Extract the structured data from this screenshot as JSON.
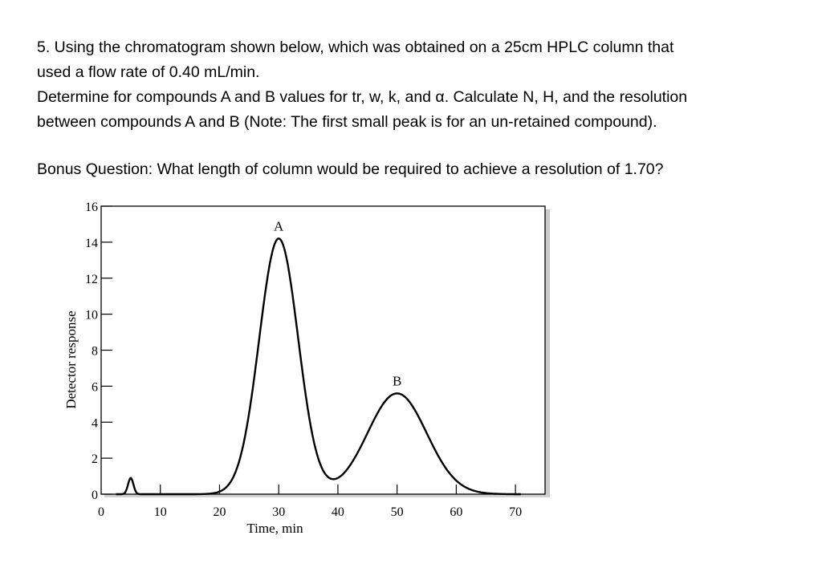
{
  "question": {
    "line1": "5. Using the chromatogram shown below, which was obtained on a 25cm HPLC column that",
    "line2": "used a flow rate of 0.40 mL/min.",
    "line3": "Determine for compounds A and B values for tr, w, k, and α. Calculate N, H, and the resolution",
    "line4": "between compounds A and B (Note: The first small peak is for an un-retained compound)."
  },
  "bonus": "Bonus Question: What length of column would be required to achieve a resolution of 1.70?",
  "chart_data": {
    "type": "line",
    "xlabel": "Time, min",
    "ylabel": "Detector response",
    "xlim": [
      0,
      75
    ],
    "ylim": [
      0,
      16
    ],
    "x_ticks": [
      "0",
      "10",
      "20",
      "30",
      "40",
      "50",
      "60",
      "70"
    ],
    "y_ticks": [
      "0",
      "2",
      "4",
      "6",
      "8",
      "10",
      "12",
      "14",
      "16"
    ],
    "peaks": [
      {
        "label": "",
        "tr": 5,
        "height": 0.9,
        "sigma": 0.45
      },
      {
        "label": "A",
        "tr": 30,
        "height": 14.2,
        "sigma": 3.3
      },
      {
        "label": "B",
        "tr": 50,
        "height": 5.6,
        "sigma": 5.0
      }
    ],
    "grid": false,
    "legend": "none",
    "line_color": "#000000"
  }
}
